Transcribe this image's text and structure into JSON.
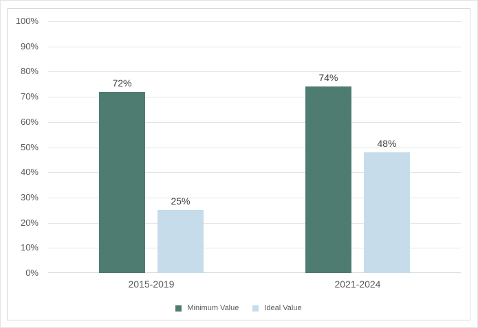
{
  "chart_data": {
    "type": "bar",
    "title": "",
    "categories": [
      "2015-2019",
      "2021-2024"
    ],
    "series": [
      {
        "name": "Minimum Value",
        "color": "#4e7c71",
        "values": [
          72,
          74
        ],
        "data_labels": [
          "72%",
          "74%"
        ]
      },
      {
        "name": "Ideal Value",
        "color": "#c6dcea",
        "values": [
          25,
          48
        ],
        "data_labels": [
          "25%",
          "48%"
        ]
      }
    ],
    "y_axis": {
      "min": 0,
      "max": 100,
      "step": 10,
      "unit": "%",
      "tick_labels": [
        "0%",
        "10%",
        "20%",
        "30%",
        "40%",
        "50%",
        "60%",
        "70%",
        "80%",
        "90%",
        "100%"
      ]
    },
    "grid": true,
    "legend_position": "bottom",
    "legend": [
      "Minimum Value",
      "Ideal Value"
    ]
  },
  "colors": {
    "series_minimum": "#4e7c71",
    "series_ideal": "#c6dcea",
    "gridline": "#e4e4e4",
    "axis_line": "#d2d2d2",
    "axis_text": "#595959",
    "data_label_text": "#3f3f3f",
    "chart_border": "#d9d9d9",
    "outer_border": "#e3e3e3",
    "background": "#ffffff"
  }
}
